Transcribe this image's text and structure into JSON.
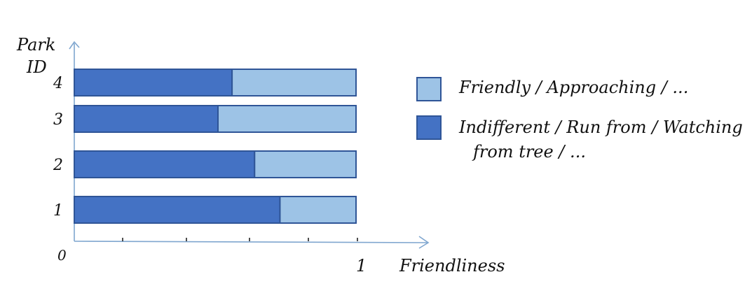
{
  "chart_data": {
    "type": "bar",
    "orientation": "horizontal",
    "stacked": true,
    "ylabel": "Park ID",
    "xlabel": "Friendliness",
    "x_ticks": [
      "0",
      "1"
    ],
    "xlim": [
      0,
      1
    ],
    "categories": [
      "1",
      "2",
      "3",
      "4"
    ],
    "series": [
      {
        "name": "Indifferent / Run from / Watching from tree / ...",
        "values": [
          0.73,
          0.64,
          0.51,
          0.56
        ],
        "color": "#4472c4"
      },
      {
        "name": "Friendly / Approaching / ...",
        "values": [
          0.27,
          0.36,
          0.49,
          0.44
        ],
        "color": "#9dc3e6"
      }
    ],
    "legend": {
      "placement": "right",
      "lines": [
        [
          "Friendly / Approaching / ..."
        ],
        [
          "Indifferent / Run from / Watching",
          "from tree / ..."
        ]
      ]
    },
    "grid": false
  }
}
